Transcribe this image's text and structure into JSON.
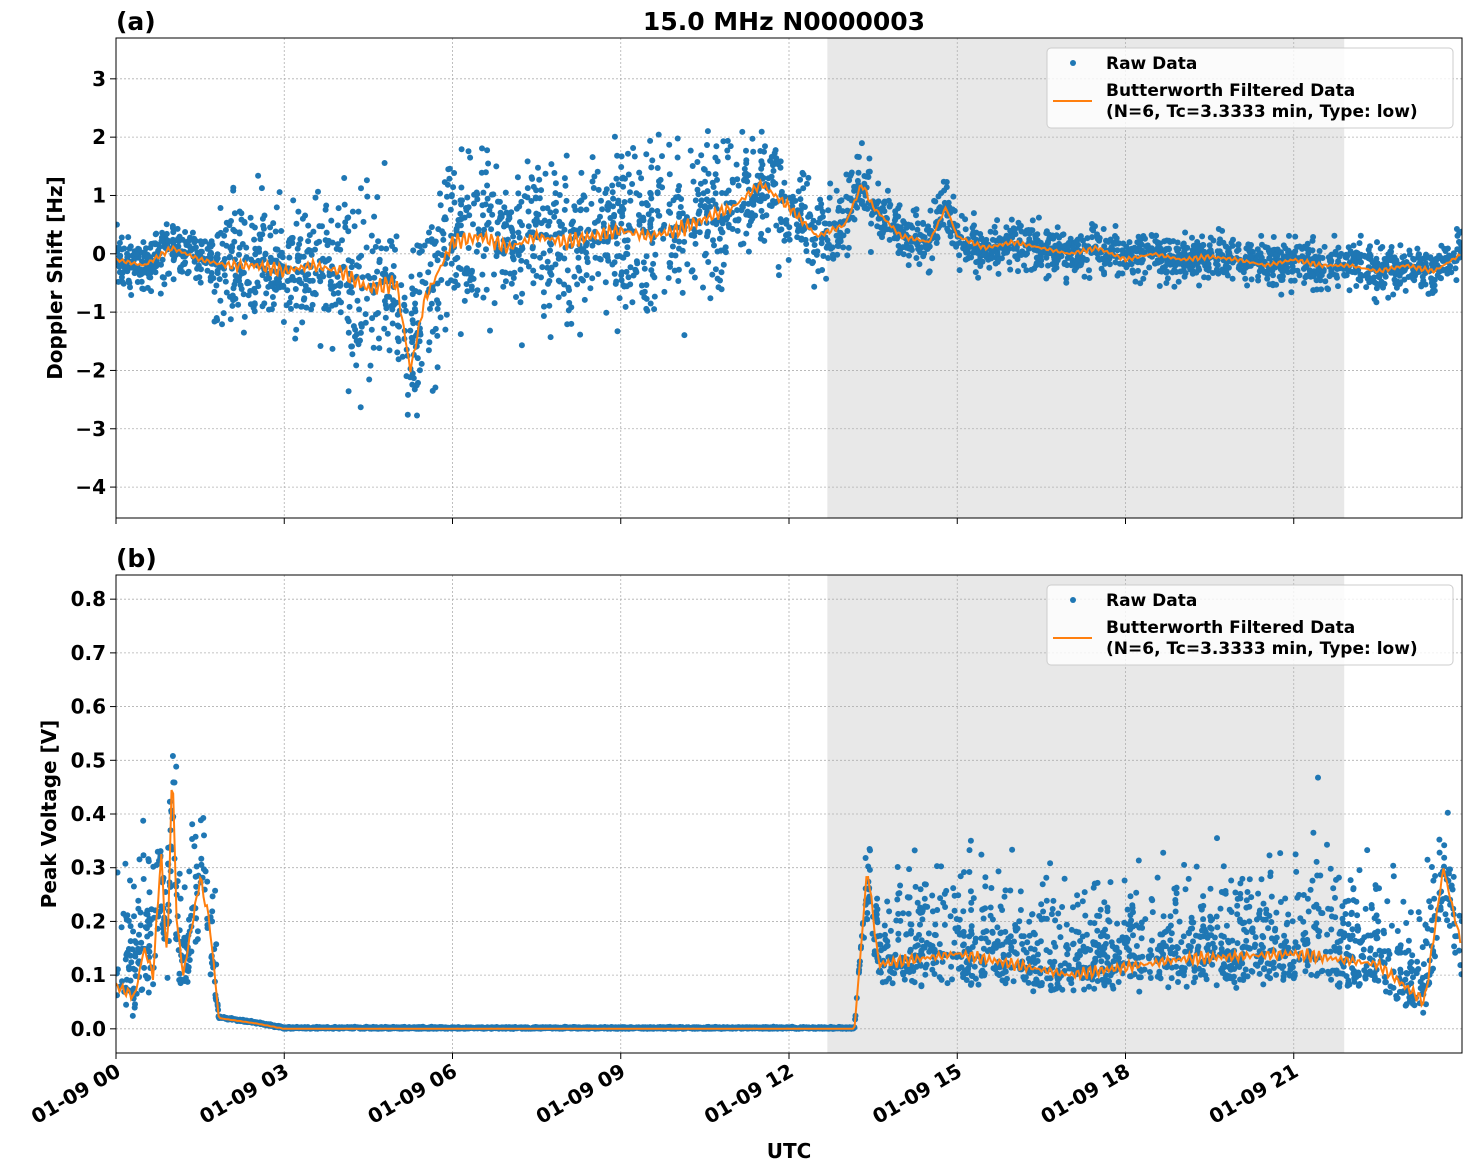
{
  "chart_data": [
    {
      "type": "scatter",
      "panel_label": "(a)",
      "title": "15.0 MHz N0000003",
      "ylabel": "Doppler Shift [Hz]",
      "xlabel": "",
      "xlim": [
        "01-09 00:00",
        "01-10 00:00"
      ],
      "ylim": [
        -4.53,
        3.7
      ],
      "yticks": [
        3,
        2,
        1,
        0,
        -1,
        -2,
        -3,
        -4
      ],
      "ytick_labels": [
        "3",
        "2",
        "1",
        "0",
        "−1",
        "−2",
        "−3",
        "−4"
      ],
      "grid": true,
      "legend_placement": "top-right",
      "shaded_region": [
        "01-09 12:41",
        "01-09 21:54"
      ],
      "series": [
        {
          "name": "Raw Data",
          "kind": "scatter",
          "color": "#1f77b4",
          "spread": [
            {
              "from": "01-09 00:00",
              "to": "01-09 01:45",
              "halfwidth": 0.4
            },
            {
              "from": "01-09 01:45",
              "to": "01-09 03:30",
              "halfwidth": 1.0
            },
            {
              "from": "01-09 03:30",
              "to": "01-09 06:00",
              "halfwidth": 1.3
            },
            {
              "from": "01-09 06:00",
              "to": "01-09 11:00",
              "halfwidth": 1.2
            },
            {
              "from": "01-09 11:00",
              "to": "01-09 12:00",
              "halfwidth": 0.8
            },
            {
              "from": "01-09 12:00",
              "to": "01-09 13:30",
              "halfwidth": 0.6
            },
            {
              "from": "01-09 13:30",
              "to": "01-10 00:00",
              "halfwidth": 0.35
            }
          ]
        },
        {
          "name": "Butterworth Filtered Data\n(N=6, Tc=3.3333 min, Type: low)",
          "kind": "line",
          "color": "#ff7f0e",
          "points": [
            [
              "01-09 00:00",
              -0.1
            ],
            [
              "01-09 00:30",
              -0.2
            ],
            [
              "01-09 01:00",
              0.1
            ],
            [
              "01-09 01:30",
              -0.1
            ],
            [
              "01-09 02:00",
              -0.2
            ],
            [
              "01-09 02:30",
              -0.2
            ],
            [
              "01-09 03:00",
              -0.3
            ],
            [
              "01-09 03:30",
              -0.2
            ],
            [
              "01-09 04:00",
              -0.3
            ],
            [
              "01-09 04:30",
              -0.6
            ],
            [
              "01-09 05:00",
              -0.5
            ],
            [
              "01-09 05:15",
              -2.0
            ],
            [
              "01-09 05:30",
              -0.8
            ],
            [
              "01-09 06:00",
              0.2
            ],
            [
              "01-09 06:30",
              0.3
            ],
            [
              "01-09 07:00",
              0.1
            ],
            [
              "01-09 07:30",
              0.3
            ],
            [
              "01-09 08:00",
              0.2
            ],
            [
              "01-09 08:30",
              0.3
            ],
            [
              "01-09 09:00",
              0.4
            ],
            [
              "01-09 09:30",
              0.3
            ],
            [
              "01-09 10:00",
              0.4
            ],
            [
              "01-09 10:30",
              0.6
            ],
            [
              "01-09 11:00",
              0.8
            ],
            [
              "01-09 11:30",
              1.2
            ],
            [
              "01-09 12:00",
              0.8
            ],
            [
              "01-09 12:30",
              0.3
            ],
            [
              "01-09 13:00",
              0.5
            ],
            [
              "01-09 13:18",
              1.2
            ],
            [
              "01-09 13:30",
              0.8
            ],
            [
              "01-09 14:00",
              0.3
            ],
            [
              "01-09 14:30",
              0.2
            ],
            [
              "01-09 14:48",
              0.8
            ],
            [
              "01-09 15:00",
              0.3
            ],
            [
              "01-09 15:30",
              0.1
            ],
            [
              "01-09 16:00",
              0.2
            ],
            [
              "01-09 16:30",
              0.1
            ],
            [
              "01-09 17:00",
              0.0
            ],
            [
              "01-09 17:30",
              0.1
            ],
            [
              "01-09 18:00",
              -0.1
            ],
            [
              "01-09 18:30",
              0.0
            ],
            [
              "01-09 19:00",
              -0.1
            ],
            [
              "01-09 19:30",
              -0.05
            ],
            [
              "01-09 20:00",
              -0.1
            ],
            [
              "01-09 20:30",
              -0.2
            ],
            [
              "01-09 21:00",
              -0.1
            ],
            [
              "01-09 21:30",
              -0.2
            ],
            [
              "01-09 22:00",
              -0.2
            ],
            [
              "01-09 22:30",
              -0.3
            ],
            [
              "01-09 23:00",
              -0.2
            ],
            [
              "01-09 23:30",
              -0.3
            ],
            [
              "01-10 00:00",
              0.0
            ]
          ]
        }
      ]
    },
    {
      "type": "scatter",
      "panel_label": "(b)",
      "title": "",
      "ylabel": "Peak Voltage [V]",
      "xlabel": "UTC",
      "xlim": [
        "01-09 00:00",
        "01-10 00:00"
      ],
      "ylim": [
        -0.045,
        0.845
      ],
      "yticks": [
        0.0,
        0.1,
        0.2,
        0.3,
        0.4,
        0.5,
        0.6,
        0.7,
        0.8
      ],
      "ytick_labels": [
        "0.0",
        "0.1",
        "0.2",
        "0.3",
        "0.4",
        "0.5",
        "0.6",
        "0.7",
        "0.8"
      ],
      "xticks": [
        "01-09 00",
        "01-09 03",
        "01-09 06",
        "01-09 09",
        "01-09 12",
        "01-09 15",
        "01-09 18",
        "01-09 21"
      ],
      "grid": true,
      "legend_placement": "top-right",
      "shaded_region": [
        "01-09 12:41",
        "01-09 21:54"
      ],
      "series": [
        {
          "name": "Raw Data",
          "kind": "scatter",
          "color": "#1f77b4",
          "spread": [
            {
              "from": "01-09 00:00",
              "to": "01-09 01:48",
              "halfwidth": 0.12
            },
            {
              "from": "01-09 01:48",
              "to": "01-09 13:20",
              "halfwidth": 0.004
            },
            {
              "from": "01-09 13:20",
              "to": "01-10 00:00",
              "halfwidth": 0.1
            }
          ]
        },
        {
          "name": "Butterworth Filtered Data\n(N=6, Tc=3.3333 min, Type: low)",
          "kind": "line",
          "color": "#ff7f0e",
          "points": [
            [
              "01-09 00:00",
              0.08
            ],
            [
              "01-09 00:20",
              0.06
            ],
            [
              "01-09 00:30",
              0.15
            ],
            [
              "01-09 00:40",
              0.1
            ],
            [
              "01-09 00:48",
              0.33
            ],
            [
              "01-09 00:55",
              0.12
            ],
            [
              "01-09 01:00",
              0.5
            ],
            [
              "01-09 01:05",
              0.2
            ],
            [
              "01-09 01:12",
              0.1
            ],
            [
              "01-09 01:30",
              0.28
            ],
            [
              "01-09 01:40",
              0.2
            ],
            [
              "01-09 01:50",
              0.02
            ],
            [
              "01-09 02:30",
              0.01
            ],
            [
              "01-09 03:00",
              0.0
            ],
            [
              "01-09 13:10",
              0.0
            ],
            [
              "01-09 13:24",
              0.3
            ],
            [
              "01-09 13:36",
              0.12
            ],
            [
              "01-09 15:00",
              0.14
            ],
            [
              "01-09 17:00",
              0.1
            ],
            [
              "01-09 19:00",
              0.13
            ],
            [
              "01-09 21:00",
              0.14
            ],
            [
              "01-09 22:30",
              0.12
            ],
            [
              "01-09 23:20",
              0.05
            ],
            [
              "01-09 23:40",
              0.3
            ],
            [
              "01-10 00:00",
              0.15
            ]
          ]
        }
      ]
    }
  ],
  "legend": {
    "raw_label": "Raw Data",
    "filtered_line1": "Butterworth Filtered Data",
    "filtered_line2": "(N=6, Tc=3.3333 min, Type: low)"
  }
}
